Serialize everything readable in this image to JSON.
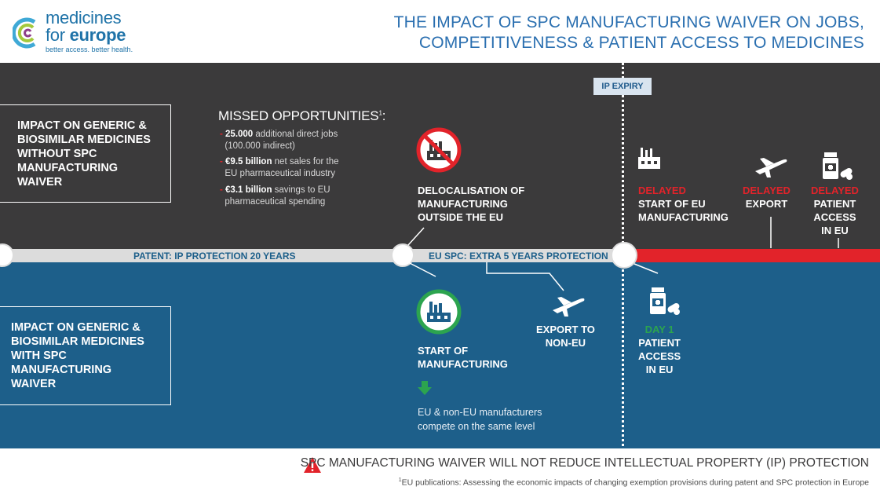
{
  "logo": {
    "word1": "medicines",
    "word2_light": "for ",
    "word2_bold": "europe",
    "tagline": "better access. better health."
  },
  "title": {
    "line1": "THE IMPACT OF SPC MANUFACTURING WAIVER ON JOBS,",
    "line2": "COMPETITIVENESS & PATIENT ACCESS TO MEDICINES"
  },
  "ip_expiry": "IP EXPIRY",
  "box_without": "IMPACT ON GENERIC & BIOSIMILAR MEDICINES WITHOUT SPC MANUFACTURING WAIVER",
  "box_with": "IMPACT ON GENERIC & BIOSIMILAR MEDICINES WITH SPC MANUFACTURING WAIVER",
  "missed": {
    "title": "MISSED OPPORTUNITIES",
    "footnote_marker": "1",
    "items": [
      {
        "bold": "25.000",
        "rest": " additional direct jobs",
        "line2": "(100.000 indirect)"
      },
      {
        "bold": "€9.5 billion",
        "rest": " net sales for the",
        "line2": "EU pharmaceutical industry"
      },
      {
        "bold": "€3.1 billion",
        "rest": " savings to EU",
        "line2": "pharmaceutical spending"
      }
    ]
  },
  "timeline": {
    "label_patent_bold": "PATENT:",
    "label_patent_rest": " IP PROTECTION 20 YEARS",
    "label_spc_bold": "EU SPC:",
    "label_spc_rest": " EXTRA 5 YEARS PROTECTION"
  },
  "without": {
    "deloc": [
      "DELOCALISATION OF",
      "MANUFACTURING",
      "OUTSIDE THE EU"
    ],
    "start_eu": {
      "delayed": "DELAYED",
      "lines": [
        "START OF EU",
        "MANUFACTURING"
      ]
    },
    "export": {
      "delayed": "DELAYED",
      "lines": [
        "EXPORT"
      ]
    },
    "access": {
      "delayed": "DELAYED",
      "lines": [
        "PATIENT",
        "ACCESS",
        "IN EU"
      ]
    }
  },
  "with": {
    "start": [
      "START OF",
      "MANUFACTURING"
    ],
    "export": [
      "EXPORT TO",
      "NON-EU"
    ],
    "day1": {
      "highlight": "DAY 1",
      "lines": [
        "PATIENT",
        "ACCESS",
        "IN EU"
      ]
    },
    "compete": [
      "EU & non-EU manufacturers",
      "compete on the same level"
    ]
  },
  "footer": {
    "warning": "SPC MANUFACTURING WAIVER WILL NOT REDUCE INTELLECTUAL PROPERTY (IP) PROTECTION",
    "footnote_marker": "1",
    "footnote": "EU publications: Assessing the economic impacts of changing exemption provisions during patent and SPC protection in Europe"
  },
  "colors": {
    "dark": "#3b3a3b",
    "blue": "#1d5f8a",
    "red": "#e2232a",
    "green": "#2ca44f",
    "title_blue": "#2a6fb0"
  }
}
